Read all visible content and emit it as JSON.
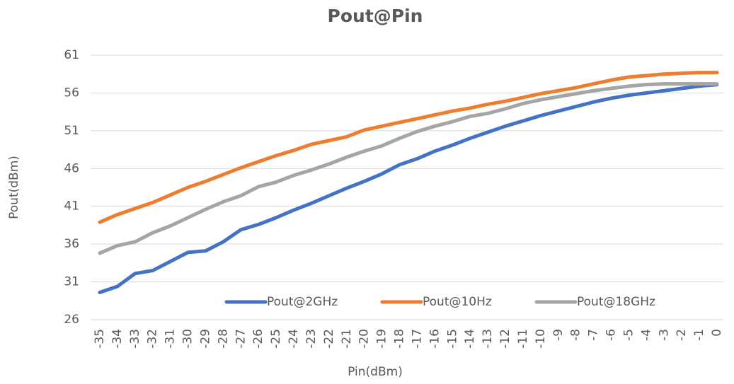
{
  "chart_data": {
    "type": "line",
    "title": "Pout@Pin",
    "xlabel": "Pin(dBm)",
    "ylabel": "Pout(dBm)",
    "x": [
      -35,
      -34,
      -33,
      -32,
      -31,
      -30,
      -29,
      -28,
      -27,
      -26,
      -25,
      -24,
      -23,
      -22,
      -21,
      -20,
      -19,
      -18,
      -17,
      -16,
      -15,
      -14,
      -13,
      -12,
      -11,
      -10,
      -9,
      -8,
      -7,
      -6,
      -5,
      -4,
      -3,
      -2,
      -1,
      0
    ],
    "xlim": [
      -35,
      0
    ],
    "xticks": [
      -35,
      -34,
      -33,
      -32,
      -31,
      -30,
      -29,
      -28,
      -27,
      -26,
      -25,
      -24,
      -23,
      -22,
      -21,
      -20,
      -19,
      -18,
      -17,
      -16,
      -15,
      -14,
      -13,
      -12,
      -11,
      -10,
      -9,
      -8,
      -7,
      -6,
      -5,
      -4,
      -3,
      -2,
      -1,
      0
    ],
    "ylim": [
      26,
      61
    ],
    "yticks": [
      26,
      31,
      36,
      41,
      46,
      51,
      56,
      61
    ],
    "grid": true,
    "legend": "bottom",
    "series": [
      {
        "name": "Pout@2GHz",
        "color": "#4472c4",
        "values": [
          29.6,
          30.4,
          32.1,
          32.5,
          33.7,
          34.9,
          35.1,
          36.3,
          37.9,
          38.6,
          39.5,
          40.5,
          41.4,
          42.4,
          43.4,
          44.3,
          45.3,
          46.5,
          47.3,
          48.3,
          49.1,
          50.0,
          50.8,
          51.6,
          52.3,
          53.0,
          53.6,
          54.2,
          54.8,
          55.3,
          55.7,
          56.0,
          56.3,
          56.6,
          56.9,
          57.1
        ]
      },
      {
        "name": "Pout@10Hz",
        "color": "#ed7d31",
        "values": [
          38.9,
          39.9,
          40.7,
          41.5,
          42.5,
          43.5,
          44.3,
          45.2,
          46.1,
          46.9,
          47.7,
          48.4,
          49.2,
          49.7,
          50.2,
          51.1,
          51.6,
          52.1,
          52.6,
          53.1,
          53.6,
          54.0,
          54.5,
          54.9,
          55.4,
          55.9,
          56.3,
          56.7,
          57.2,
          57.7,
          58.1,
          58.3,
          58.5,
          58.6,
          58.7,
          58.7
        ]
      },
      {
        "name": "Pout@18GHz",
        "color": "#a5a5a5",
        "values": [
          34.8,
          35.8,
          36.3,
          37.5,
          38.4,
          39.5,
          40.6,
          41.6,
          42.4,
          43.6,
          44.2,
          45.1,
          45.8,
          46.6,
          47.5,
          48.3,
          49.0,
          50.0,
          50.9,
          51.6,
          52.2,
          52.9,
          53.3,
          53.9,
          54.6,
          55.1,
          55.5,
          55.9,
          56.3,
          56.6,
          56.9,
          57.1,
          57.2,
          57.2,
          57.2,
          57.2
        ]
      }
    ]
  }
}
